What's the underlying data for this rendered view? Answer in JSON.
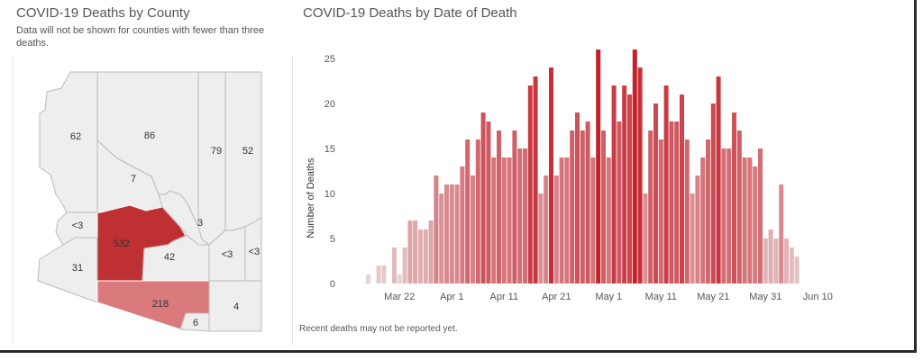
{
  "map_panel": {
    "title": "COVID-19 Deaths by County",
    "subtitle": "Data will not be shown for counties with fewer than three deaths.",
    "counties": [
      {
        "name": "Mohave",
        "label": "62"
      },
      {
        "name": "Coconino",
        "label": "86"
      },
      {
        "name": "Navajo",
        "label": "79"
      },
      {
        "name": "Apache",
        "label": "52"
      },
      {
        "name": "Yavapai",
        "label": "7"
      },
      {
        "name": "Gila",
        "label": "3"
      },
      {
        "name": "La Paz",
        "label": "<3"
      },
      {
        "name": "Maricopa",
        "label": "532"
      },
      {
        "name": "Pinal",
        "label": "42"
      },
      {
        "name": "Graham",
        "label": "<3"
      },
      {
        "name": "Greenlee",
        "label": "<3"
      },
      {
        "name": "Yuma",
        "label": "31"
      },
      {
        "name": "Pima",
        "label": "218"
      },
      {
        "name": "Santa Cruz",
        "label": "6"
      },
      {
        "name": "Cochise",
        "label": "4"
      }
    ]
  },
  "chart_panel": {
    "footnote": "Recent deaths may not be reported yet."
  },
  "chart_data": {
    "type": "bar",
    "title": "COVID-19 Deaths by Date of Death",
    "xlabel": "",
    "ylabel": "Number of Deaths",
    "ylim": [
      0,
      27
    ],
    "yticks": [
      0,
      5,
      10,
      15,
      20,
      25
    ],
    "x_tick_labels": [
      "Mar 22",
      "Apr 1",
      "Apr 11",
      "Apr 21",
      "May 1",
      "May 11",
      "May 21",
      "May 31",
      "Jun 10"
    ],
    "start_date": "Mar 16",
    "values": [
      1,
      0,
      2,
      2,
      0,
      4,
      1,
      4,
      7,
      7,
      6,
      6,
      7,
      12,
      10,
      11,
      11,
      11,
      13,
      16,
      12,
      16,
      19,
      18,
      14,
      17,
      14,
      14,
      17,
      15,
      15,
      22,
      23,
      10,
      12,
      24,
      12,
      14,
      14,
      17,
      19,
      17,
      18,
      14,
      26,
      17,
      14,
      22,
      18,
      22,
      21,
      26,
      24,
      10,
      17,
      20,
      16,
      22,
      18,
      18,
      21,
      16,
      10,
      12,
      14,
      16,
      20,
      23,
      15,
      15,
      19,
      17,
      14,
      14,
      13,
      15,
      5,
      6,
      5,
      11,
      5,
      4,
      3
    ]
  }
}
